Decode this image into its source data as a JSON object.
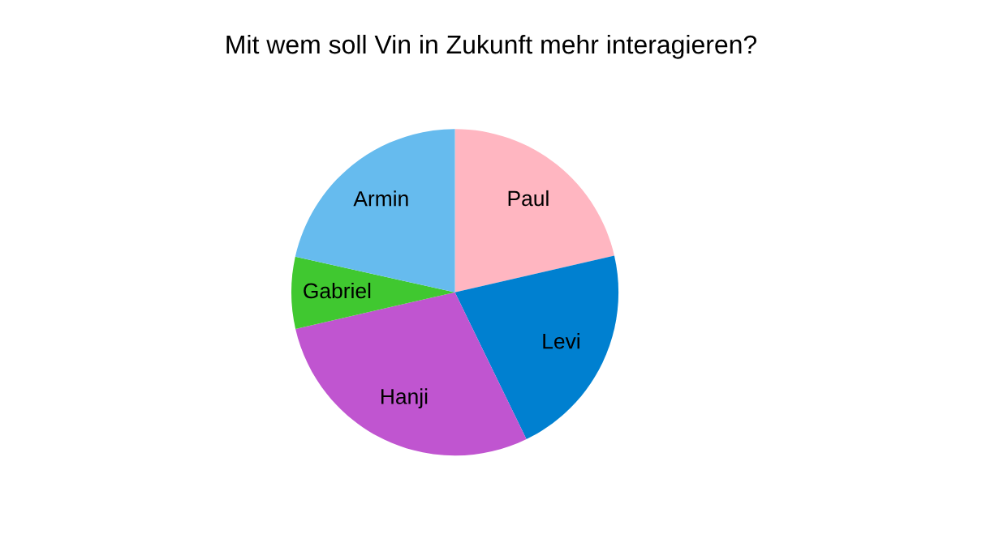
{
  "chart_data": {
    "type": "pie",
    "title": "Mit wem soll Vin in Zukunft mehr interagieren?",
    "categories": [
      "Paul",
      "Levi",
      "Hanji",
      "Gabriel",
      "Armin"
    ],
    "values": [
      21.4,
      21.4,
      28.6,
      7.1,
      21.5
    ],
    "colors": [
      "#ffb6c1",
      "#0080d0",
      "#c055d0",
      "#40c830",
      "#66bbee"
    ]
  }
}
